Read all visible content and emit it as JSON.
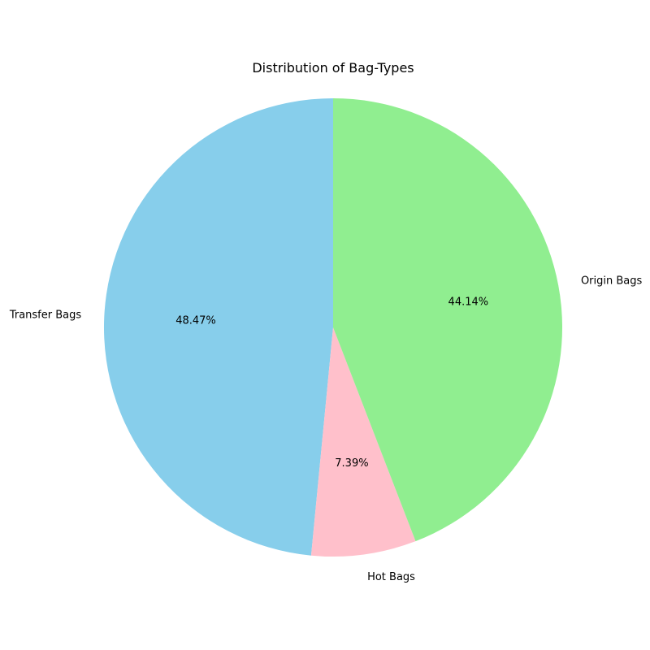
{
  "chart_data": {
    "type": "pie",
    "title": "Distribution of Bag-Types",
    "start_angle_deg": 90,
    "direction": "counterclockwise",
    "slices": [
      {
        "label": "Transfer Bags",
        "value": 48.47,
        "pct_label": "48.47%",
        "color": "#87ceeb"
      },
      {
        "label": "Hot Bags",
        "value": 7.39,
        "pct_label": "7.39%",
        "color": "#ffc0cb"
      },
      {
        "label": "Origin Bags",
        "value": 44.14,
        "pct_label": "44.14%",
        "color": "#90ee90"
      }
    ]
  }
}
